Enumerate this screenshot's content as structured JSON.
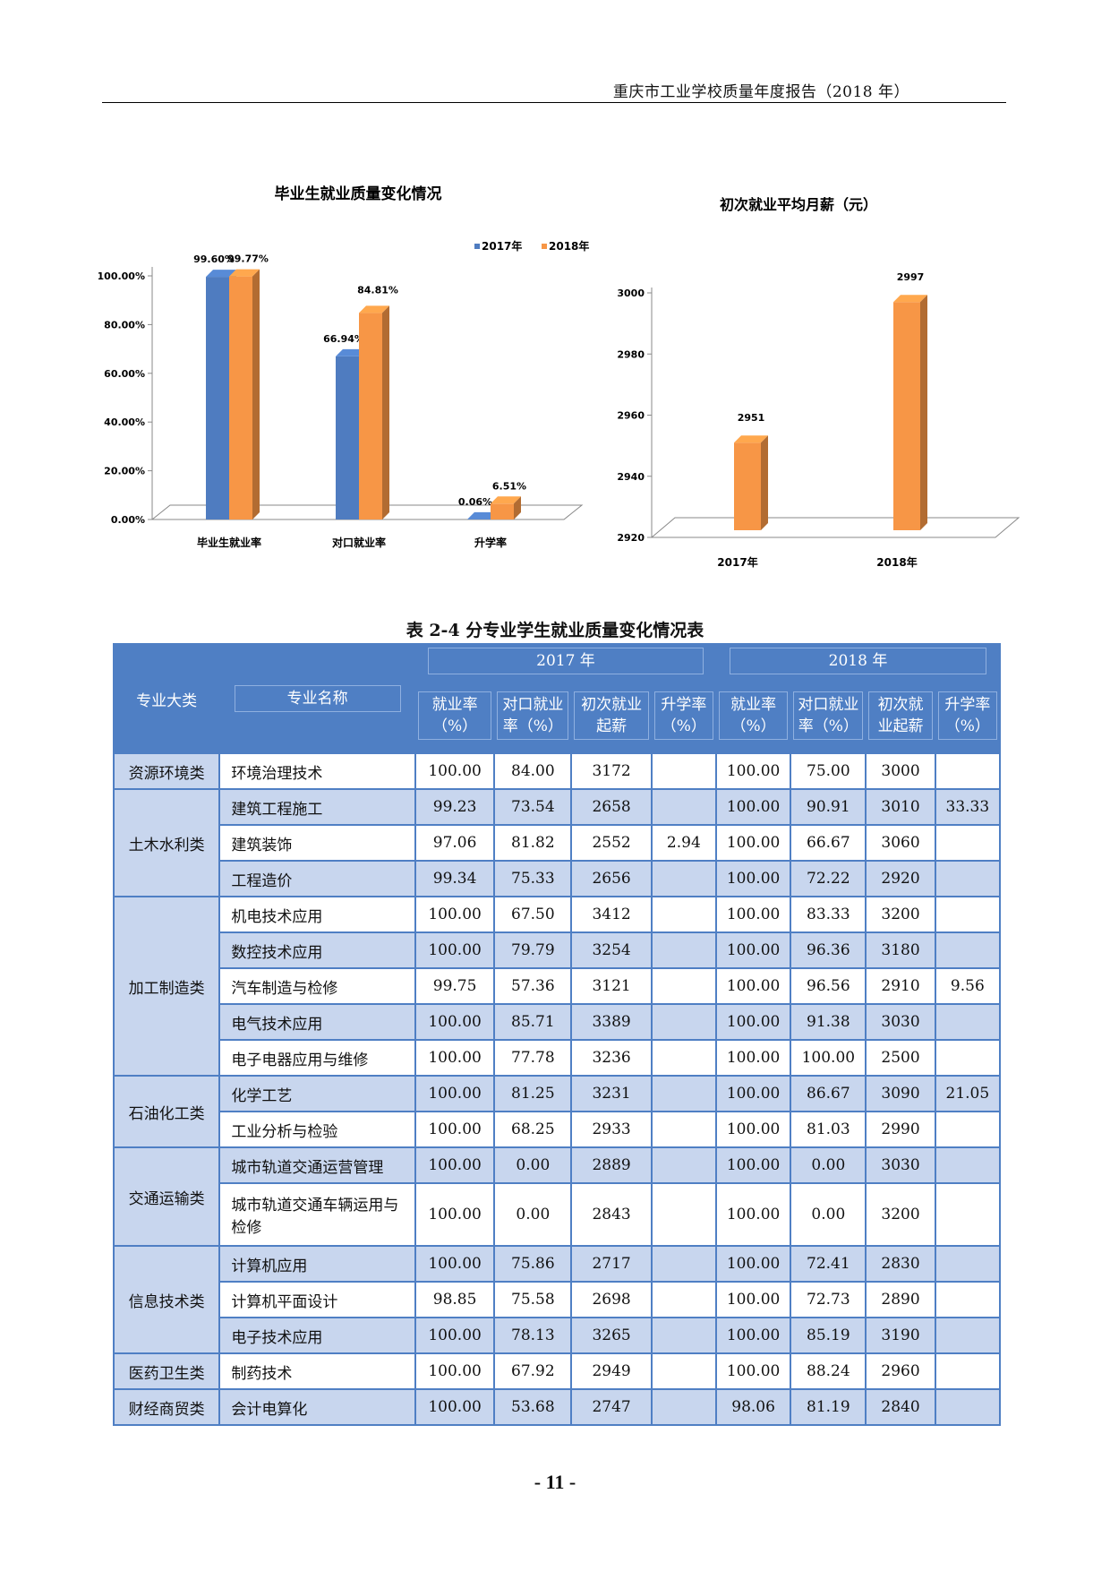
{
  "header": {
    "title": "重庆市工业学校质量年度报告（2018 年）"
  },
  "chart_data": [
    {
      "type": "bar",
      "title": "毕业生就业质量变化情况",
      "categories": [
        "毕业生就业率",
        "对口就业率",
        "升学率"
      ],
      "series": [
        {
          "name": "2017年",
          "values": [
            99.6,
            66.94,
            0.06
          ],
          "labels": [
            "99.60%",
            "66.94%",
            "0.06%"
          ],
          "color": "#4f7cc0"
        },
        {
          "name": "2018年",
          "values": [
            99.77,
            84.81,
            6.51
          ],
          "labels": [
            "99.77%",
            "84.81%",
            "6.51%"
          ],
          "color": "#f79646"
        }
      ],
      "ylim": [
        0,
        100
      ],
      "yticks": [
        "0.00%",
        "20.00%",
        "40.00%",
        "60.00%",
        "80.00%",
        "100.00%"
      ],
      "legend": "top-right",
      "grid": false
    },
    {
      "type": "bar",
      "title": "初次就业平均月薪（元）",
      "categories": [
        "2017年",
        "2018年"
      ],
      "values": [
        2951,
        2997
      ],
      "labels": [
        "2951",
        "2997"
      ],
      "color": "#f79646",
      "ylim": [
        2920,
        3000
      ],
      "yticks": [
        "2920",
        "2940",
        "2960",
        "2980",
        "3000"
      ],
      "grid": false
    }
  ],
  "table": {
    "title": "表 2-4 分专业学生就业质量变化情况表",
    "headers": {
      "category": "专业大类",
      "name": "专业名称",
      "year2017": "2017 年",
      "year2018": "2018 年",
      "sub": [
        "就业率（%）",
        "对口就业率（%）",
        "初次就业起薪",
        "升学率（%）"
      ],
      "sub2018": [
        "就业率（%）",
        "对口就业率（%）",
        "初次就业起薪",
        "升学率（%）"
      ]
    },
    "groups": [
      {
        "category": "资源环境类",
        "rows": [
          {
            "name": "环境治理技术",
            "v": [
              "100.00",
              "84.00",
              "3172",
              "",
              "100.00",
              "75.00",
              "3000",
              ""
            ]
          }
        ]
      },
      {
        "category": "土木水利类",
        "rows": [
          {
            "name": "建筑工程施工",
            "v": [
              "99.23",
              "73.54",
              "2658",
              "",
              "100.00",
              "90.91",
              "3010",
              "33.33"
            ]
          },
          {
            "name": "建筑装饰",
            "v": [
              "97.06",
              "81.82",
              "2552",
              "2.94",
              "100.00",
              "66.67",
              "3060",
              ""
            ]
          },
          {
            "name": "工程造价",
            "v": [
              "99.34",
              "75.33",
              "2656",
              "",
              "100.00",
              "72.22",
              "2920",
              ""
            ]
          }
        ]
      },
      {
        "category": "加工制造类",
        "rows": [
          {
            "name": "机电技术应用",
            "v": [
              "100.00",
              "67.50",
              "3412",
              "",
              "100.00",
              "83.33",
              "3200",
              ""
            ]
          },
          {
            "name": "数控技术应用",
            "v": [
              "100.00",
              "79.79",
              "3254",
              "",
              "100.00",
              "96.36",
              "3180",
              ""
            ]
          },
          {
            "name": "汽车制造与检修",
            "v": [
              "99.75",
              "57.36",
              "3121",
              "",
              "100.00",
              "96.56",
              "2910",
              "9.56"
            ]
          },
          {
            "name": "电气技术应用",
            "v": [
              "100.00",
              "85.71",
              "3389",
              "",
              "100.00",
              "91.38",
              "3030",
              ""
            ]
          },
          {
            "name": "电子电器应用与维修",
            "v": [
              "100.00",
              "77.78",
              "3236",
              "",
              "100.00",
              "100.00",
              "2500",
              ""
            ]
          }
        ]
      },
      {
        "category": "石油化工类",
        "rows": [
          {
            "name": "化学工艺",
            "v": [
              "100.00",
              "81.25",
              "3231",
              "",
              "100.00",
              "86.67",
              "3090",
              "21.05"
            ]
          },
          {
            "name": "工业分析与检验",
            "v": [
              "100.00",
              "68.25",
              "2933",
              "",
              "100.00",
              "81.03",
              "2990",
              ""
            ]
          }
        ]
      },
      {
        "category": "交通运输类",
        "rows": [
          {
            "name": "城市轨道交通运营管理",
            "v": [
              "100.00",
              "0.00",
              "2889",
              "",
              "100.00",
              "0.00",
              "3030",
              ""
            ]
          },
          {
            "name": "城市轨道交通车辆运用与检修",
            "v": [
              "100.00",
              "0.00",
              "2843",
              "",
              "100.00",
              "0.00",
              "3200",
              ""
            ]
          }
        ]
      },
      {
        "category": "信息技术类",
        "rows": [
          {
            "name": "计算机应用",
            "v": [
              "100.00",
              "75.86",
              "2717",
              "",
              "100.00",
              "72.41",
              "2830",
              ""
            ]
          },
          {
            "name": "计算机平面设计",
            "v": [
              "98.85",
              "75.58",
              "2698",
              "",
              "100.00",
              "72.73",
              "2890",
              ""
            ]
          },
          {
            "name": "电子技术应用",
            "v": [
              "100.00",
              "78.13",
              "3265",
              "",
              "100.00",
              "85.19",
              "3190",
              ""
            ]
          }
        ]
      },
      {
        "category": "医药卫生类",
        "rows": [
          {
            "name": "制药技术",
            "v": [
              "100.00",
              "67.92",
              "2949",
              "",
              "100.00",
              "88.24",
              "2960",
              ""
            ]
          }
        ]
      },
      {
        "category": "财经商贸类",
        "rows": [
          {
            "name": "会计电算化",
            "v": [
              "100.00",
              "53.68",
              "2747",
              "",
              "98.06",
              "81.19",
              "2840",
              ""
            ]
          }
        ]
      }
    ]
  },
  "page_number": "- 11 -"
}
